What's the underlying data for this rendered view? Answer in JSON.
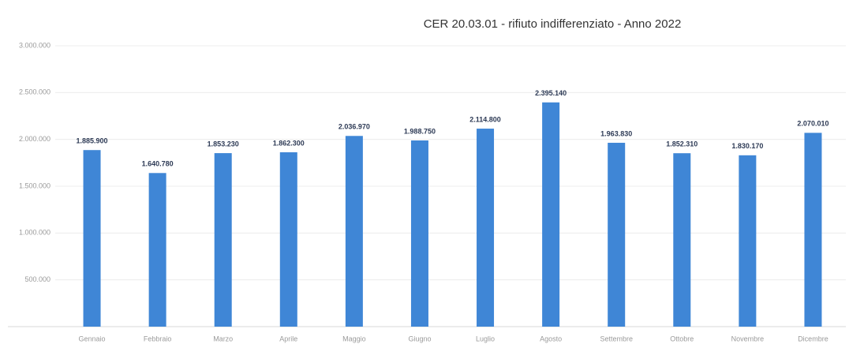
{
  "chart_data": {
    "type": "bar",
    "title": "CER 20.03.01 - rifiuto indifferenziato - Anno 2022",
    "categories": [
      "Gennaio",
      "Febbraio",
      "Marzo",
      "Aprile",
      "Maggio",
      "Giugno",
      "Luglio",
      "Agosto",
      "Settembre",
      "Ottobre",
      "Novembre",
      "Dicembre"
    ],
    "values": [
      1885900,
      1640780,
      1853230,
      1862300,
      2036970,
      1988750,
      2114800,
      2395140,
      1963830,
      1852310,
      1830170,
      2070010
    ],
    "value_labels": [
      "1.885.900",
      "1.640.780",
      "1.853.230",
      "1.862.300",
      "2.036.970",
      "1.988.750",
      "2.114.800",
      "2.395.140",
      "1.963.830",
      "1.852.310",
      "1.830.170",
      "2.070.010"
    ],
    "color": "#3f86d6",
    "ylim": [
      0,
      3000000
    ],
    "yticks": [
      {
        "value": 500000,
        "label": "500.000"
      },
      {
        "value": 1000000,
        "label": "1.000.000"
      },
      {
        "value": 1500000,
        "label": "1.500.000"
      },
      {
        "value": 2000000,
        "label": "2.000.000"
      },
      {
        "value": 2500000,
        "label": "2.500.000"
      },
      {
        "value": 3000000,
        "label": "3.000.000"
      }
    ],
    "grid": true
  }
}
